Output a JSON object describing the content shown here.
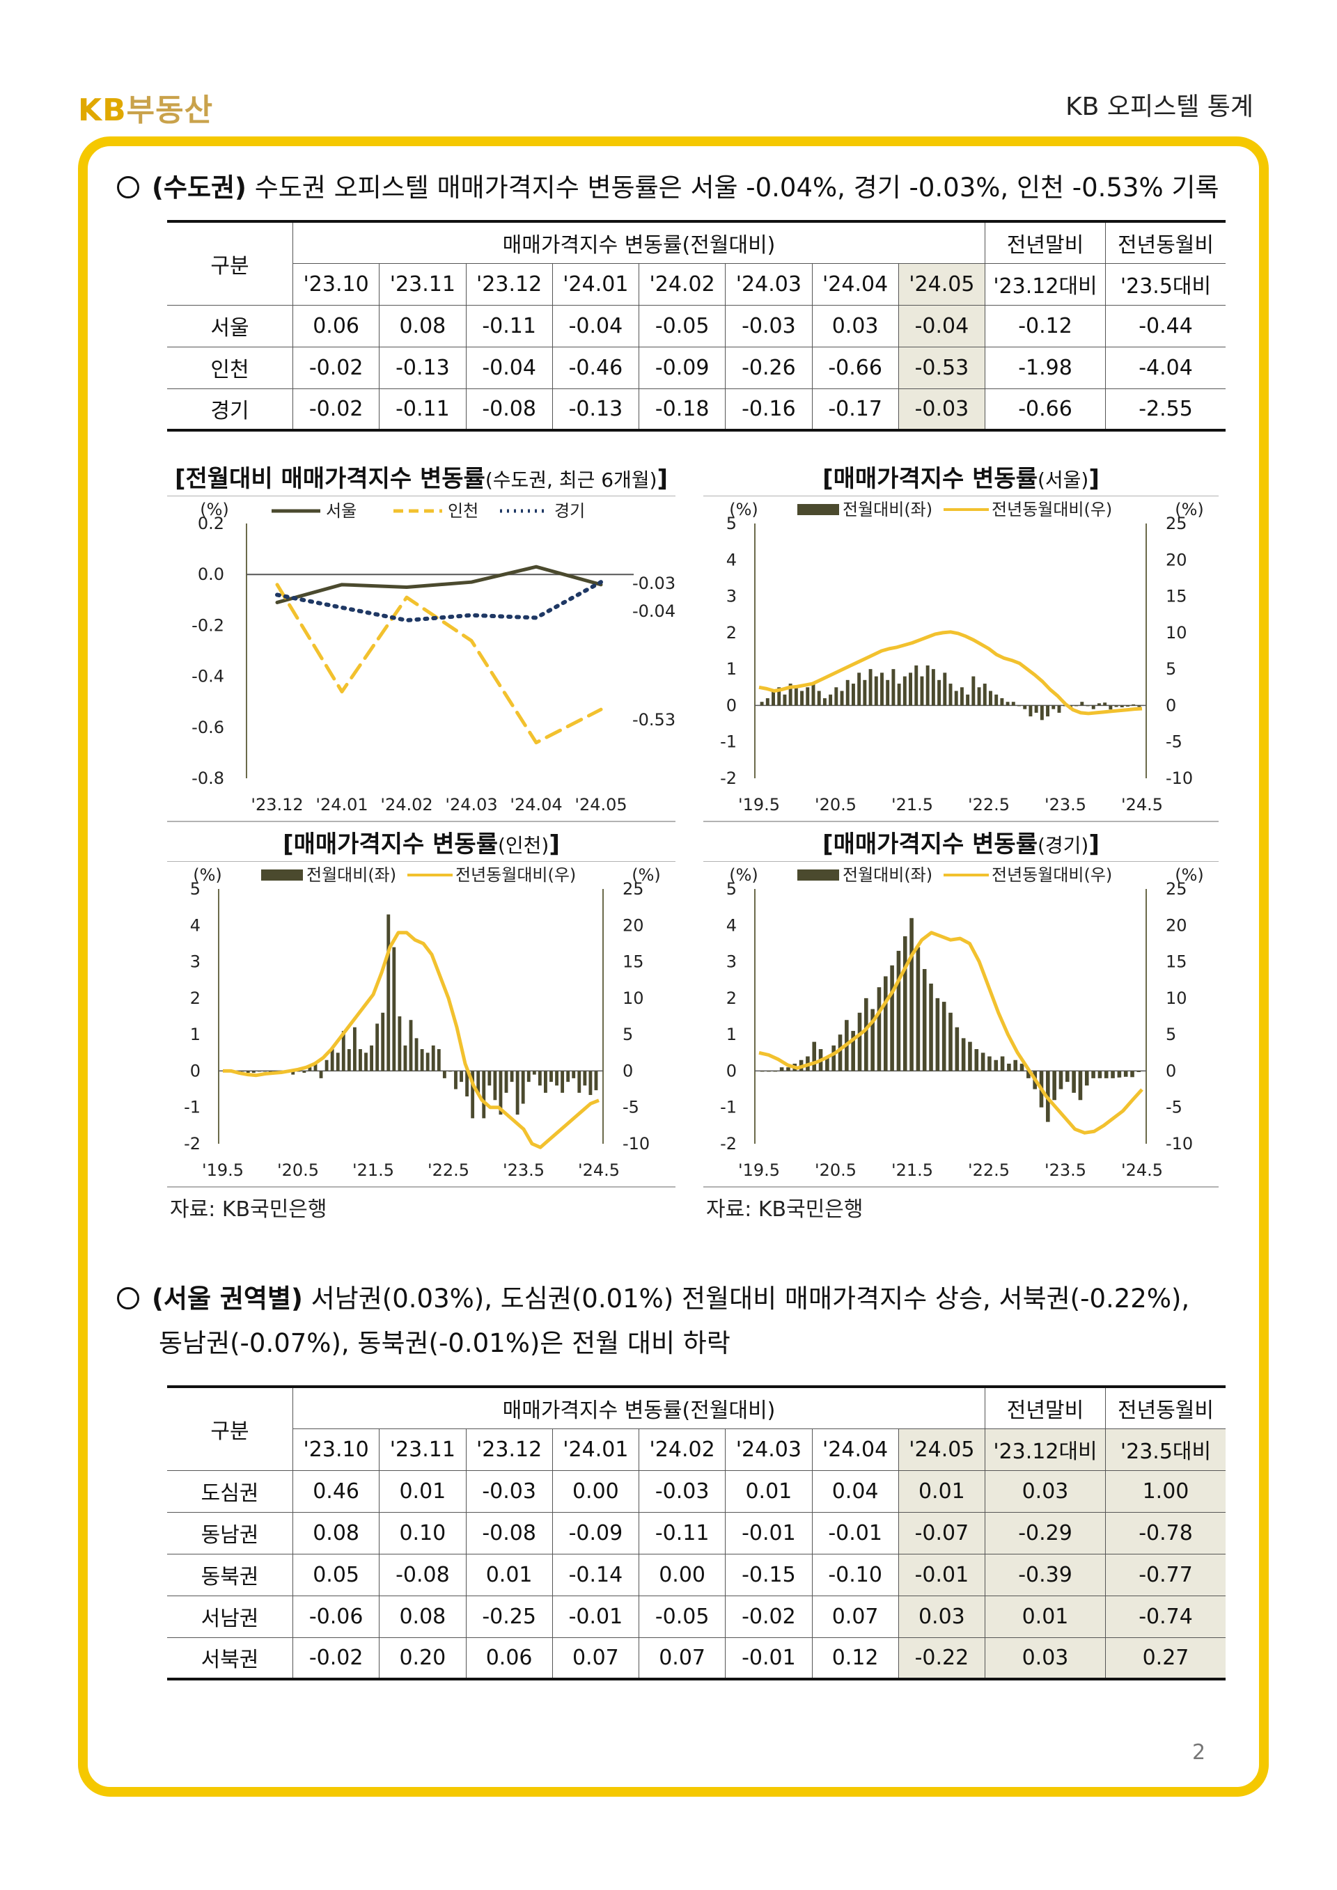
{
  "header": {
    "logo_kb": "KB",
    "logo_text": "부동산",
    "doc_title": "KB 오피스텔 통계"
  },
  "section1": {
    "title_bold": "(수도권)",
    "title_text": " 수도권 오피스텔 매매가격지수 변동률은 서울 -0.04%, 경기 -0.03%, 인천 -0.53% 기록"
  },
  "table1": {
    "corner": "구분",
    "group_header": "매매가격지수 변동률(전월대비)",
    "ytd_header": "전년말비",
    "yoy_header": "전년동월비",
    "months": [
      "'23.10",
      "'23.11",
      "'23.12",
      "'24.01",
      "'24.02",
      "'24.03",
      "'24.04",
      "'24.05"
    ],
    "ytd_sub": "'23.12대비",
    "yoy_sub": "'23.5대비",
    "rows": [
      {
        "name": "서울",
        "values": [
          "0.06",
          "0.08",
          "-0.11",
          "-0.04",
          "-0.05",
          "-0.03",
          "0.03",
          "-0.04"
        ],
        "ytd": "-0.12",
        "yoy": "-0.44"
      },
      {
        "name": "인천",
        "values": [
          "-0.02",
          "-0.13",
          "-0.04",
          "-0.46",
          "-0.09",
          "-0.26",
          "-0.66",
          "-0.53"
        ],
        "ytd": "-1.98",
        "yoy": "-4.04"
      },
      {
        "name": "경기",
        "values": [
          "-0.02",
          "-0.11",
          "-0.08",
          "-0.13",
          "-0.18",
          "-0.16",
          "-0.17",
          "-0.03"
        ],
        "ytd": "-0.66",
        "yoy": "-2.55"
      }
    ]
  },
  "charts": {
    "c1": {
      "title": "[전월대비 매매가격지수 변동률",
      "title_sub": "(수도권, 최근 6개월)",
      "title_end": "]",
      "unit": "(%)"
    },
    "c2": {
      "title": "[매매가격지수 변동률",
      "title_sub": "(서울)",
      "title_end": "]",
      "unit_left": "(%)",
      "unit_right": "(%)",
      "legend_bar": "전월대비(좌)",
      "legend_line": "전년동월대비(우)"
    },
    "c3": {
      "title": "[매매가격지수 변동률",
      "title_sub": "(인천)",
      "title_end": "]",
      "unit_left": "(%)",
      "unit_right": "(%)",
      "legend_bar": "전월대비(좌)",
      "legend_line": "전년동월대비(우)"
    },
    "c4": {
      "title": "[매매가격지수 변동률",
      "title_sub": "(경기)",
      "title_end": "]",
      "unit_left": "(%)",
      "unit_right": "(%)",
      "legend_bar": "전월대비(좌)",
      "legend_line": "전년동월대비(우)"
    }
  },
  "chart_data": [
    {
      "type": "line",
      "x": [
        "'23.12",
        "'24.01",
        "'24.02",
        "'24.03",
        "'24.04",
        "'24.05"
      ],
      "ylim": [
        -0.8,
        0.2
      ],
      "yticks": [
        "0.2",
        "0.0",
        "-0.2",
        "-0.4",
        "-0.6",
        "-0.8"
      ],
      "series": [
        {
          "name": "서울",
          "values": [
            -0.11,
            -0.04,
            -0.05,
            -0.03,
            0.03,
            -0.04
          ],
          "color": "#4b4a2e",
          "style": "solid",
          "end_label": "-0.04"
        },
        {
          "name": "인천",
          "values": [
            -0.04,
            -0.46,
            -0.09,
            -0.26,
            -0.66,
            -0.53
          ],
          "color": "#f2c12e",
          "style": "dashed",
          "end_label": "-0.53"
        },
        {
          "name": "경기",
          "values": [
            -0.08,
            -0.13,
            -0.18,
            -0.16,
            -0.17,
            -0.03
          ],
          "color": "#1f3864",
          "style": "dotted",
          "end_label": "-0.03"
        }
      ]
    },
    {
      "type": "bar+line",
      "region": "서울",
      "x_ticks": [
        "'19.5",
        "'20.5",
        "'21.5",
        "'22.5",
        "'23.5",
        "'24.5"
      ],
      "ylim_left": [
        -2,
        5
      ],
      "ylim_right": [
        -10,
        25
      ],
      "yticks_left": [
        "5",
        "4",
        "3",
        "2",
        "1",
        "0",
        "-1",
        "-2"
      ],
      "yticks_right": [
        "25",
        "20",
        "15",
        "10",
        "5",
        "0",
        "-5",
        "-10"
      ],
      "bars": [
        0.1,
        0.2,
        0.4,
        0.5,
        0.3,
        0.6,
        0.5,
        0.4,
        0.5,
        0.6,
        0.4,
        0.2,
        0.3,
        0.5,
        0.4,
        0.7,
        0.6,
        0.9,
        0.7,
        1.0,
        0.8,
        0.9,
        0.7,
        1.0,
        0.6,
        0.8,
        0.9,
        1.1,
        0.8,
        1.1,
        1.0,
        0.7,
        0.9,
        0.6,
        0.4,
        0.5,
        0.3,
        0.8,
        0.5,
        0.6,
        0.4,
        0.3,
        0.2,
        0.1,
        0.1,
        0.0,
        -0.1,
        -0.3,
        -0.2,
        -0.4,
        -0.3,
        -0.1,
        -0.2,
        0.0,
        -0.1,
        0.0,
        0.1,
        0.0,
        -0.1,
        0.06,
        0.08,
        -0.11,
        -0.04,
        -0.05,
        -0.03,
        0.03,
        -0.04
      ],
      "line": [
        2.5,
        2.3,
        2.0,
        2.2,
        2.5,
        2.6,
        2.8,
        3.0,
        3.5,
        4.0,
        4.5,
        5.0,
        5.5,
        6.0,
        6.5,
        7.0,
        7.5,
        7.8,
        8.0,
        8.3,
        8.6,
        9.0,
        9.4,
        9.8,
        10.0,
        10.1,
        9.9,
        9.5,
        9.0,
        8.4,
        7.8,
        7.0,
        6.5,
        6.2,
        5.8,
        5.0,
        4.2,
        3.3,
        2.2,
        1.3,
        0.2,
        -0.6,
        -1.0,
        -1.1,
        -1.0,
        -0.9,
        -0.8,
        -0.7,
        -0.6,
        -0.5,
        -0.44
      ]
    },
    {
      "type": "bar+line",
      "region": "인천",
      "x_ticks": [
        "'19.5",
        "'20.5",
        "'21.5",
        "'22.5",
        "'23.5",
        "'24.5"
      ],
      "ylim_left": [
        -2,
        5
      ],
      "ylim_right": [
        -10,
        25
      ],
      "yticks_left": [
        "5",
        "4",
        "3",
        "2",
        "1",
        "0",
        "-1",
        "-2"
      ],
      "yticks_right": [
        "25",
        "20",
        "15",
        "10",
        "5",
        "0",
        "-5",
        "-10"
      ],
      "bars": [
        0.0,
        0.0,
        -0.05,
        0.0,
        -0.05,
        -0.05,
        0.0,
        0.0,
        -0.05,
        0.0,
        0.0,
        -0.05,
        -0.1,
        0.0,
        -0.05,
        0.1,
        0.2,
        -0.2,
        0.3,
        0.6,
        0.5,
        1.1,
        0.6,
        1.2,
        0.6,
        0.5,
        0.7,
        1.3,
        1.6,
        4.3,
        3.4,
        1.5,
        0.7,
        1.4,
        0.9,
        0.6,
        0.5,
        0.7,
        0.6,
        -0.2,
        0.0,
        -0.5,
        -0.3,
        -0.7,
        -1.3,
        -0.6,
        -1.3,
        -0.4,
        -0.8,
        -1.2,
        -0.6,
        -0.3,
        -1.2,
        -0.9,
        -0.3,
        -0.1,
        -0.4,
        -0.6,
        -0.3,
        -0.4,
        -0.6,
        -0.3,
        -0.2,
        -0.6,
        -0.4,
        -0.66,
        -0.53
      ],
      "line": [
        0.0,
        0.0,
        -0.3,
        -0.5,
        -0.6,
        -0.4,
        -0.3,
        -0.2,
        0.0,
        0.2,
        0.5,
        1.0,
        1.8,
        3.0,
        4.5,
        6.0,
        7.5,
        9.0,
        10.5,
        13.5,
        17.0,
        19.0,
        19.0,
        18.0,
        17.5,
        16.0,
        13.0,
        10.0,
        6.0,
        1.0,
        -2.0,
        -4.0,
        -5.0,
        -5.0,
        -6.0,
        -7.0,
        -8.0,
        -10.0,
        -10.5,
        -9.5,
        -8.5,
        -7.5,
        -6.5,
        -5.5,
        -4.5,
        -4.04
      ]
    },
    {
      "type": "bar+line",
      "region": "경기",
      "x_ticks": [
        "'19.5",
        "'20.5",
        "'21.5",
        "'22.5",
        "'23.5",
        "'24.5"
      ],
      "ylim_left": [
        -2,
        5
      ],
      "ylim_right": [
        -10,
        25
      ],
      "yticks_left": [
        "5",
        "4",
        "3",
        "2",
        "1",
        "0",
        "-1",
        "-2"
      ],
      "yticks_right": [
        "25",
        "20",
        "15",
        "10",
        "5",
        "0",
        "-5",
        "-10"
      ],
      "bars": [
        0.0,
        0.0,
        0.0,
        0.1,
        0.1,
        0.2,
        0.3,
        0.4,
        0.8,
        0.6,
        0.4,
        0.7,
        1.0,
        1.4,
        1.1,
        1.6,
        2.0,
        1.7,
        2.3,
        2.6,
        2.9,
        3.3,
        3.7,
        4.2,
        3.4,
        2.8,
        2.4,
        2.0,
        1.9,
        1.6,
        1.2,
        0.9,
        0.8,
        0.6,
        0.5,
        0.4,
        0.3,
        0.4,
        0.2,
        0.3,
        0.2,
        -0.2,
        -0.5,
        -1.0,
        -1.4,
        -0.8,
        -0.5,
        -0.3,
        -0.6,
        -0.8,
        -0.4,
        -0.2,
        -0.2,
        -0.2,
        -0.2,
        -0.18,
        -0.16,
        -0.17,
        -0.03
      ],
      "line": [
        2.5,
        2.2,
        1.6,
        0.8,
        0.4,
        0.8,
        1.2,
        1.8,
        2.5,
        3.5,
        4.5,
        5.5,
        7.0,
        9.0,
        11.0,
        13.5,
        16.0,
        18.0,
        19.0,
        18.5,
        18.0,
        18.2,
        17.5,
        15.0,
        11.5,
        8.0,
        5.0,
        2.5,
        0.5,
        -1.5,
        -3.5,
        -5.0,
        -6.5,
        -8.0,
        -8.5,
        -8.3,
        -7.5,
        -6.5,
        -5.5,
        -4.0,
        -2.55
      ]
    }
  ],
  "source1": "자료: KB국민은행",
  "source2": "자료: KB국민은행",
  "section2": {
    "title_bold": "(서울 권역별)",
    "title_text": " 서남권(0.03%), 도심권(0.01%) 전월대비 매매가격지수 상승, 서북권(-0.22%),",
    "title_line2": "동남권(-0.07%), 동북권(-0.01%)은 전월 대비 하락"
  },
  "table2": {
    "corner": "구분",
    "group_header": "매매가격지수 변동률(전월대비)",
    "ytd_header": "전년말비",
    "yoy_header": "전년동월비",
    "months": [
      "'23.10",
      "'23.11",
      "'23.12",
      "'24.01",
      "'24.02",
      "'24.03",
      "'24.04",
      "'24.05"
    ],
    "ytd_sub": "'23.12대비",
    "yoy_sub": "'23.5대비",
    "rows": [
      {
        "name": "도심권",
        "values": [
          "0.46",
          "0.01",
          "-0.03",
          "0.00",
          "-0.03",
          "0.01",
          "0.04",
          "0.01"
        ],
        "ytd": "0.03",
        "yoy": "1.00"
      },
      {
        "name": "동남권",
        "values": [
          "0.08",
          "0.10",
          "-0.08",
          "-0.09",
          "-0.11",
          "-0.01",
          "-0.01",
          "-0.07"
        ],
        "ytd": "-0.29",
        "yoy": "-0.78"
      },
      {
        "name": "동북권",
        "values": [
          "0.05",
          "-0.08",
          "0.01",
          "-0.14",
          "0.00",
          "-0.15",
          "-0.10",
          "-0.01"
        ],
        "ytd": "-0.39",
        "yoy": "-0.77"
      },
      {
        "name": "서남권",
        "values": [
          "-0.06",
          "0.08",
          "-0.25",
          "-0.01",
          "-0.05",
          "-0.02",
          "0.07",
          "0.03"
        ],
        "ytd": "0.01",
        "yoy": "-0.74"
      },
      {
        "name": "서북권",
        "values": [
          "-0.02",
          "0.20",
          "0.06",
          "0.07",
          "0.07",
          "-0.01",
          "0.12",
          "-0.22"
        ],
        "ytd": "0.03",
        "yoy": "0.27"
      }
    ]
  },
  "page_number": "2"
}
